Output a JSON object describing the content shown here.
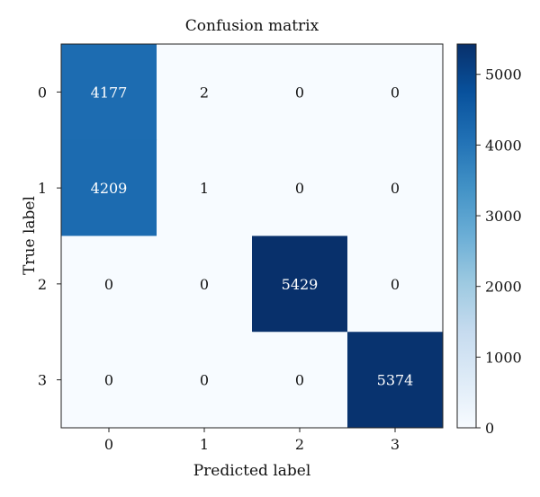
{
  "chart_data": {
    "type": "heatmap",
    "title": "Confusion matrix",
    "xlabel": "Predicted label",
    "ylabel": "True label",
    "x_categories": [
      "0",
      "1",
      "2",
      "3"
    ],
    "y_categories": [
      "0",
      "1",
      "2",
      "3"
    ],
    "matrix": [
      [
        4177,
        2,
        0,
        0
      ],
      [
        4209,
        1,
        0,
        0
      ],
      [
        0,
        0,
        5429,
        0
      ],
      [
        0,
        0,
        0,
        5374
      ]
    ],
    "colorbar": {
      "min": 0,
      "max": 5429,
      "ticks": [
        0,
        1000,
        2000,
        3000,
        4000,
        5000
      ],
      "colormap": "Blues",
      "low_color": "#f7fbff",
      "high_color": "#08306b"
    },
    "grid": false
  }
}
